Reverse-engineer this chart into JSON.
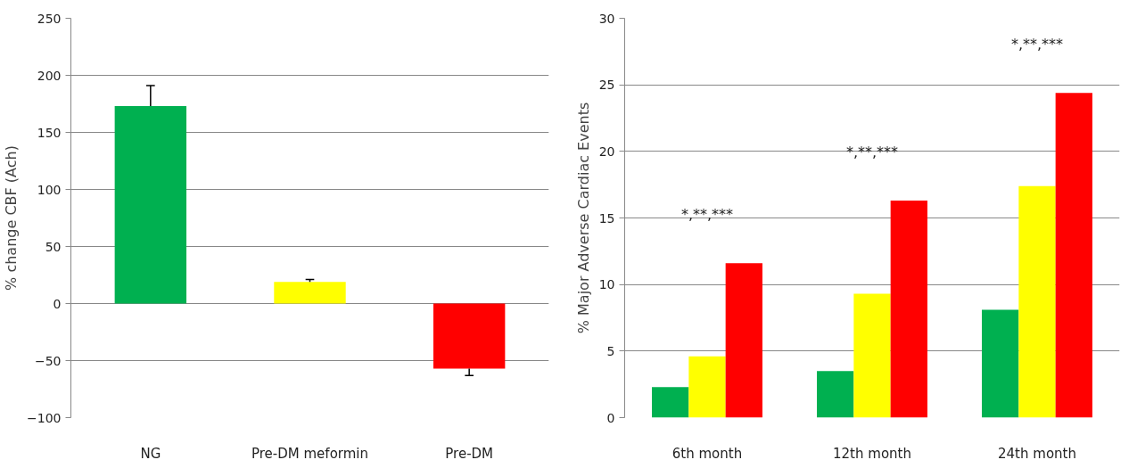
{
  "chart_data": [
    {
      "type": "bar",
      "ylabel": "% change CBF (Ach)",
      "categories": [
        "NG",
        "Pre-DM meformin",
        "Pre-DM"
      ],
      "values": [
        173,
        19,
        -57
      ],
      "colors": [
        "#00b050",
        "#ffff00",
        "#ff0000"
      ],
      "errors": [
        [
          173,
          191
        ],
        [
          19,
          21
        ],
        [
          -63,
          -57
        ]
      ],
      "ylim": [
        -100,
        250
      ],
      "yticks": [
        -100,
        -50,
        0,
        50,
        100,
        150,
        200,
        250
      ],
      "grid": "y"
    },
    {
      "type": "bar",
      "ylabel": "% Major Adverse Cardiac Events",
      "categories": [
        "6th month",
        "12th month",
        "24th month"
      ],
      "series": [
        {
          "color": "#00b050",
          "values": [
            2.3,
            3.5,
            8.1
          ]
        },
        {
          "color": "#ffff00",
          "values": [
            4.6,
            9.3,
            17.4
          ]
        },
        {
          "color": "#ff0000",
          "values": [
            11.6,
            16.3,
            24.4
          ]
        }
      ],
      "annotations": [
        "*,**,***",
        "*,**,***",
        "*,**,***"
      ],
      "ylim": [
        0,
        30
      ],
      "yticks": [
        0,
        5,
        10,
        15,
        20,
        25,
        30
      ],
      "grid": "y"
    }
  ]
}
